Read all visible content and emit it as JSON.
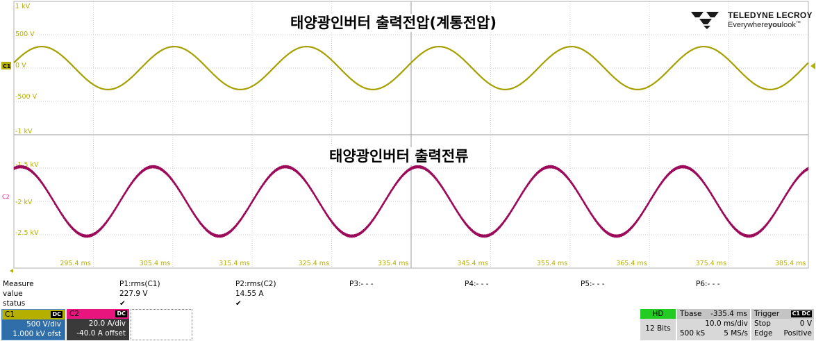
{
  "titles": {
    "voltage": "태양광인버터 출력전압(계통전압)",
    "current": "태양광인버터 출력전류"
  },
  "logo": {
    "brand": "TELEDYNE LECROY",
    "tagline_pre": "Everywhere",
    "tagline_bold": "you",
    "tagline_post": "look",
    "trademark": "™"
  },
  "axis": {
    "upper_labels": [
      "1 kV",
      "500 V",
      "0 V",
      "-500 V",
      "-1 kV"
    ],
    "lower_labels": [
      "-1.5 kV",
      "-2 kV",
      "-2.5 kV"
    ],
    "time_labels": [
      "295.4 ms",
      "305.4 ms",
      "315.4 ms",
      "325.4 ms",
      "335.4 ms",
      "345.4 ms",
      "355.4 ms",
      "365.4 ms",
      "375.4 ms",
      "385.4 ms"
    ],
    "c1_marker": "C1",
    "c2_marker": "C2"
  },
  "measure": {
    "row_labels": [
      "Measure",
      "value",
      "status"
    ],
    "params": [
      {
        "name": "P1:rms(C1)",
        "value": "227.9 V",
        "status": "✔"
      },
      {
        "name": "P2:rms(C2)",
        "value": "14.55 A",
        "status": "✔"
      },
      {
        "name": "P3:- - -",
        "value": "",
        "status": ""
      },
      {
        "name": "P4:- - -",
        "value": "",
        "status": ""
      },
      {
        "name": "P5:- - -",
        "value": "",
        "status": ""
      },
      {
        "name": "P6:- - -",
        "value": "",
        "status": ""
      }
    ]
  },
  "channels": {
    "c1": {
      "name": "C1",
      "coupling": "DC",
      "vdiv": "500 V/div",
      "offset": "1.000 kV ofst",
      "color": "#b5b000"
    },
    "c2": {
      "name": "C2",
      "coupling": "DC",
      "vdiv": "20.0 A/div",
      "offset": "-40.0 A offset",
      "color": "#e8157f"
    }
  },
  "status_panels": {
    "hd": {
      "head": "HD",
      "line1": "12 Bits"
    },
    "tbase": {
      "head": "Tbase",
      "head_value": "-335.4 ms",
      "line1": "10.0 ms/div",
      "line2_left": "500 kS",
      "line2_right": "5 MS/s"
    },
    "trigger": {
      "head": "Trigger",
      "badge1": "C1",
      "badge2": "DC",
      "line1_left": "Stop",
      "line1_right": "0 V",
      "line2_left": "Edge",
      "line2_right": "Positive"
    }
  },
  "chart_data": {
    "type": "line",
    "x": {
      "start_ms": 290.4,
      "end_ms": 390.4,
      "unit": "ms",
      "ms_per_div": 10.0
    },
    "series": [
      {
        "name": "C1",
        "unit": "V",
        "amplitude": 322,
        "frequency_hz": 60,
        "phase_deg_at_start": 0,
        "color": "#a5a000"
      },
      {
        "name": "C2",
        "unit": "kV",
        "center": -2.0,
        "amplitude": 0.52,
        "frequency_hz": 60,
        "color": "#9c0a5a"
      }
    ]
  }
}
